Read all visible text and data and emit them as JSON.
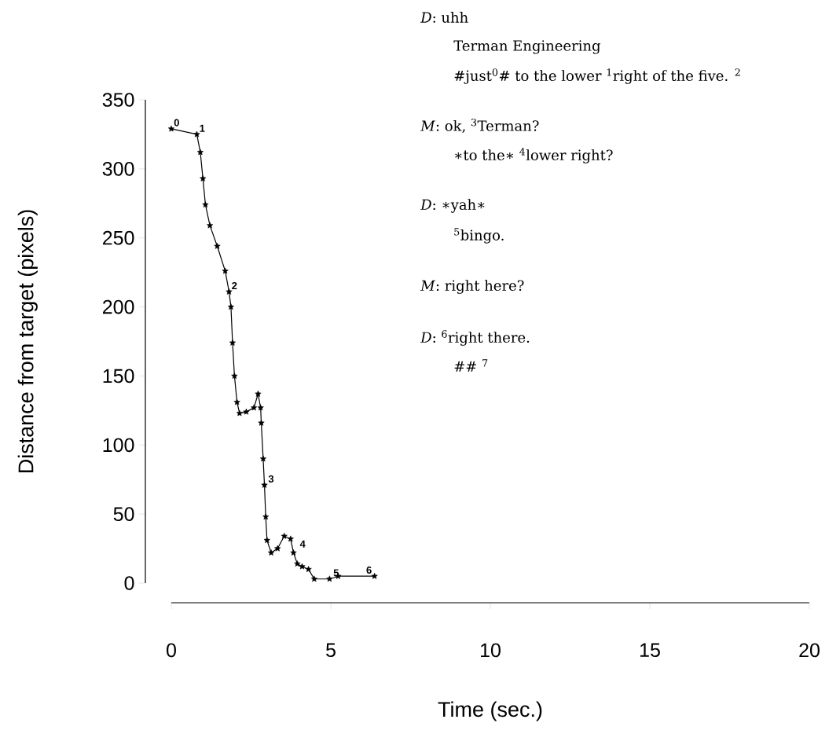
{
  "chart_data": {
    "type": "line",
    "xlabel": "Time (sec.)",
    "ylabel": "Distance from target (pixels)",
    "x": [
      0,
      0.8,
      0.91,
      0.99,
      1.07,
      1.21,
      1.44,
      1.69,
      1.81,
      1.87,
      1.92,
      1.98,
      2.06,
      2.14,
      2.35,
      2.59,
      2.72,
      2.8,
      2.82,
      2.88,
      2.92,
      2.96,
      3.0,
      3.13,
      3.33,
      3.54,
      3.74,
      3.83,
      3.95,
      4.1,
      4.3,
      4.48,
      4.96,
      5.23,
      6.37
    ],
    "values": [
      329,
      325,
      312,
      293,
      274,
      259,
      244,
      226,
      211,
      200,
      174,
      150,
      131,
      123,
      124,
      127,
      137,
      127,
      116,
      90,
      71,
      48,
      31,
      22,
      25,
      34,
      32,
      22,
      14,
      12,
      10,
      3,
      3,
      5,
      5
    ],
    "color": "#000000",
    "marker": "star",
    "line_style": "solid",
    "xlim": [
      0,
      20
    ],
    "xticks": [
      0,
      5,
      10,
      15,
      20
    ],
    "ylim": [
      0,
      350
    ],
    "yticks": [
      0,
      50,
      100,
      150,
      200,
      250,
      300,
      350
    ],
    "annotations": [
      {
        "text": "0",
        "x": 0,
        "y": 329
      },
      {
        "text": "1",
        "x": 0.8,
        "y": 325
      },
      {
        "text": "2",
        "x": 1.81,
        "y": 211
      },
      {
        "text": "3",
        "x": 2.96,
        "y": 71
      },
      {
        "text": "4",
        "x": 3.95,
        "y": 24
      },
      {
        "text": "5",
        "x": 5.0,
        "y": 3
      },
      {
        "text": "6",
        "x": 6.03,
        "y": 5
      },
      "*D*: uhh",
      "Terman Engineering",
      "#just$^{0}$# to the lower $^{1}$right of the five. $^{2}$",
      "*M*: ok, $^{3}$Terman?",
      "∗to the∗ $^{4}$lower right?",
      "*D*: ∗yah∗",
      "$^{5}$bingo.",
      "*M*: right here?",
      "*D*: $^{6}$right there.",
      "## $^{7}$"
    ]
  }
}
